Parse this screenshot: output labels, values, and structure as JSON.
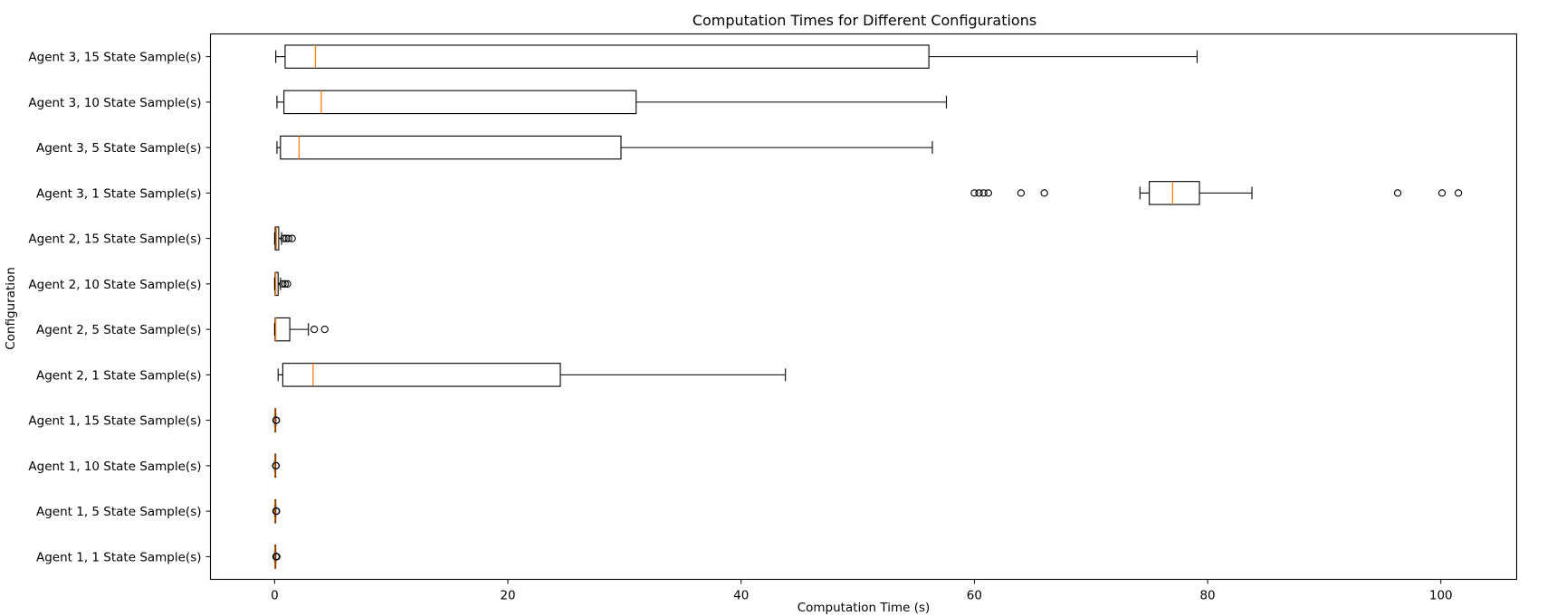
{
  "chart_data": {
    "type": "boxplot",
    "orientation": "horizontal",
    "title": "Computation Times for Different Configurations",
    "xlabel": "Computation Time (s)",
    "ylabel": "Configuration",
    "xlim": [
      -5.5,
      106.5
    ],
    "xticks": [
      0,
      20,
      40,
      60,
      80,
      100
    ],
    "grid": false,
    "colors": {
      "box": "#000000",
      "median": "#ff7f0e",
      "flier": "#000000",
      "background": "#ffffff"
    },
    "categories": [
      "Agent 1, 1 State Sample(s)",
      "Agent 1, 5 State Sample(s)",
      "Agent 1, 10 State Sample(s)",
      "Agent 1, 15 State Sample(s)",
      "Agent 2, 1 State Sample(s)",
      "Agent 2, 5 State Sample(s)",
      "Agent 2, 10 State Sample(s)",
      "Agent 2, 15 State Sample(s)",
      "Agent 3, 1 State Sample(s)",
      "Agent 3, 5 State Sample(s)",
      "Agent 3, 10 State Sample(s)",
      "Agent 3, 15 State Sample(s)"
    ],
    "boxes": [
      {
        "whislo": 0.0,
        "q1": 0.02,
        "med": 0.04,
        "q3": 0.06,
        "whishi": 0.1,
        "fliers": [
          0.12,
          0.15,
          0.18
        ]
      },
      {
        "whislo": 0.0,
        "q1": 0.02,
        "med": 0.04,
        "q3": 0.06,
        "whishi": 0.1,
        "fliers": [
          0.12,
          0.16
        ]
      },
      {
        "whislo": 0.0,
        "q1": 0.02,
        "med": 0.04,
        "q3": 0.05,
        "whishi": 0.08,
        "fliers": [
          0.1,
          0.12
        ]
      },
      {
        "whislo": 0.0,
        "q1": 0.02,
        "med": 0.04,
        "q3": 0.06,
        "whishi": 0.1,
        "fliers": [
          0.12,
          0.15
        ]
      },
      {
        "whislo": 0.3,
        "q1": 0.7,
        "med": 3.3,
        "q3": 24.5,
        "whishi": 43.8,
        "fliers": []
      },
      {
        "whislo": 0.0,
        "q1": 0.05,
        "med": 0.1,
        "q3": 1.3,
        "whishi": 2.9,
        "fliers": [
          3.4,
          4.3
        ]
      },
      {
        "whislo": 0.0,
        "q1": 0.05,
        "med": 0.1,
        "q3": 0.3,
        "whishi": 0.5,
        "fliers": [
          0.7,
          0.9,
          1.1
        ]
      },
      {
        "whislo": 0.0,
        "q1": 0.05,
        "med": 0.15,
        "q3": 0.35,
        "whishi": 0.6,
        "fliers": [
          0.8,
          1.0,
          1.2,
          1.5
        ]
      },
      {
        "whislo": 74.2,
        "q1": 75.0,
        "med": 77.0,
        "q3": 79.3,
        "whishi": 83.8,
        "fliers": [
          60.0,
          60.4,
          60.8,
          61.2,
          64.0,
          66.0,
          96.3,
          100.1,
          101.5
        ]
      },
      {
        "whislo": 0.2,
        "q1": 0.5,
        "med": 2.1,
        "q3": 29.7,
        "whishi": 56.4,
        "fliers": []
      },
      {
        "whislo": 0.2,
        "q1": 0.8,
        "med": 4.0,
        "q3": 31.0,
        "whishi": 57.6,
        "fliers": []
      },
      {
        "whislo": 0.1,
        "q1": 0.9,
        "med": 3.5,
        "q3": 56.1,
        "whishi": 79.1,
        "fliers": []
      }
    ]
  }
}
